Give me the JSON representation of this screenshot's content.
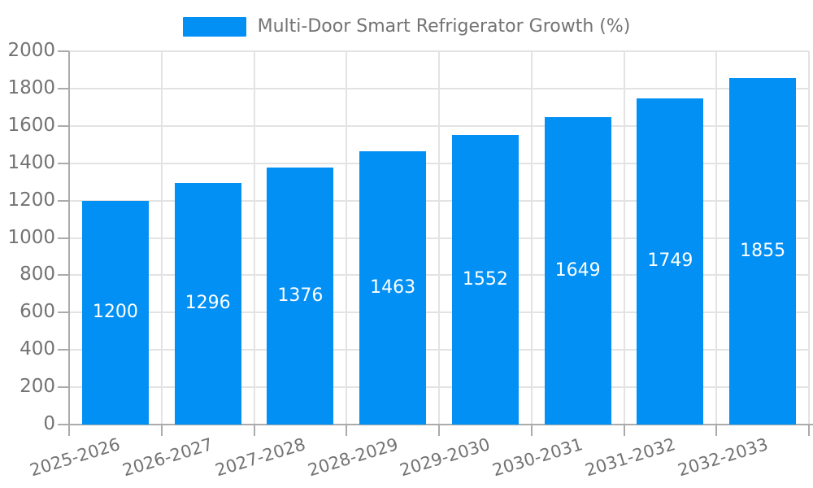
{
  "legend": {
    "label": "Multi-Door Smart Refrigerator Growth (%)",
    "position": "top-center"
  },
  "chart_data": {
    "type": "bar",
    "title": "",
    "series_name": "Multi-Door Smart Refrigerator Growth (%)",
    "categories": [
      "2025-2026",
      "2026-2027",
      "2027-2028",
      "2028-2029",
      "2029-2030",
      "2030-2031",
      "2031-2032",
      "2032-2033"
    ],
    "values": [
      1200,
      1296,
      1376,
      1463,
      1552,
      1649,
      1749,
      1855
    ],
    "bar_value_labels": [
      "1200",
      "1296",
      "1376",
      "1463",
      "1552",
      "1649",
      "1749",
      "1855"
    ],
    "xlabel": "",
    "ylabel": "",
    "ylim": [
      0,
      2000
    ],
    "ytick_step": 200,
    "ytick_labels": [
      "0",
      "200",
      "400",
      "600",
      "800",
      "1000",
      "1200",
      "1400",
      "1600",
      "1800",
      "2000"
    ],
    "grid": "horizontal and vertical gridlines",
    "legend_position": "top-center",
    "x_label_rotation_deg": -17,
    "colors": {
      "bar": "#0290f5",
      "bar_value_label": "#ffffff",
      "axis_text": "#737373",
      "axis_line": "#ababab",
      "gridline": "#e3e3e3",
      "background": "#ffffff"
    }
  }
}
